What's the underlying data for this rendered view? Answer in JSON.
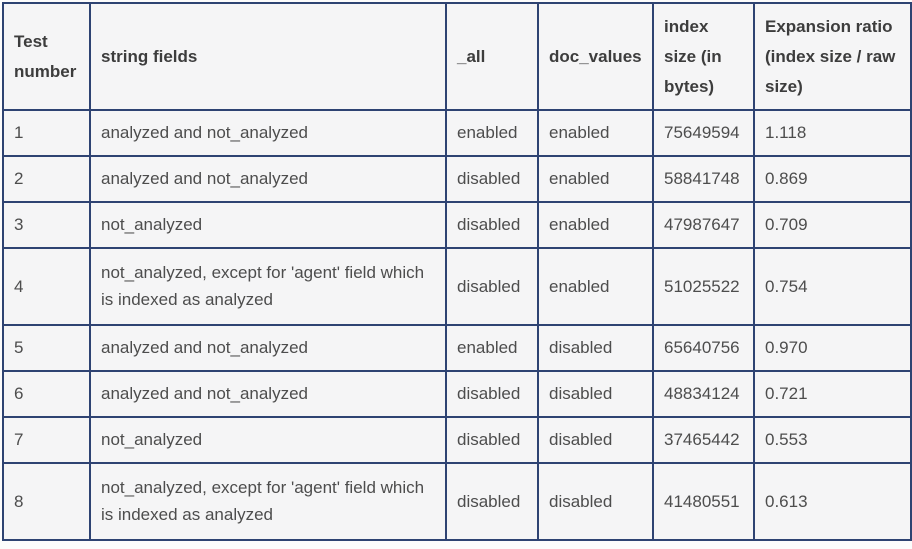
{
  "colors": {
    "table_border": "#2e4372",
    "cell_background": "#f5f5f6",
    "page_background": "#fcfcfc",
    "header_text": "#3d3d3d",
    "body_text": "#4d4d4d"
  },
  "table": {
    "columns": [
      "Test number",
      "string fields",
      "_all",
      "doc_values",
      "index size (in bytes)",
      "Expansion ratio (index size / raw size)"
    ],
    "rows": [
      [
        "1",
        "analyzed and not_analyzed",
        "enabled",
        "enabled",
        "75649594",
        "1.118"
      ],
      [
        "2",
        "analyzed and not_analyzed",
        "disabled",
        "enabled",
        "58841748",
        "0.869"
      ],
      [
        "3",
        "not_analyzed",
        "disabled",
        "enabled",
        "47987647",
        "0.709"
      ],
      [
        "4",
        "not_analyzed, except for 'agent' field which is indexed as analyzed",
        "disabled",
        "enabled",
        "51025522",
        "0.754"
      ],
      [
        "5",
        "analyzed and not_analyzed",
        "enabled",
        "disabled",
        "65640756",
        "0.970"
      ],
      [
        "6",
        "analyzed and not_analyzed",
        "disabled",
        "disabled",
        "48834124",
        "0.721"
      ],
      [
        "7",
        "not_analyzed",
        "disabled",
        "disabled",
        "37465442",
        "0.553"
      ],
      [
        "8",
        "not_analyzed, except for 'agent' field which is indexed as analyzed",
        "disabled",
        "disabled",
        "41480551",
        "0.613"
      ]
    ]
  }
}
